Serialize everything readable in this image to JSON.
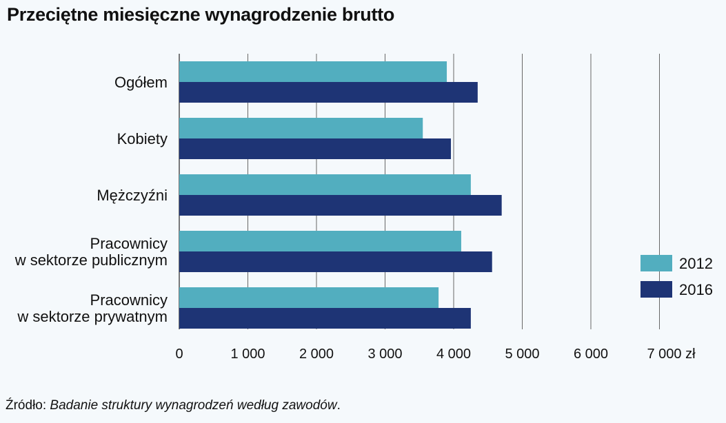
{
  "chart_data": {
    "type": "bar",
    "orientation": "horizontal",
    "title": "Przeciętne miesięczne wynagrodzenie brutto",
    "categories": [
      [
        "Ogółem"
      ],
      [
        "Kobiety"
      ],
      [
        "Mężczyźni"
      ],
      [
        "Pracownicy",
        "w sektorze publicznym"
      ],
      [
        "Pracownicy",
        "w sektorze prywatnym"
      ]
    ],
    "series": [
      {
        "name": "2012",
        "color": "#52aebf",
        "values": [
          3900,
          3550,
          4250,
          4110,
          3780
        ]
      },
      {
        "name": "2016",
        "color": "#1e3475",
        "values": [
          4350,
          3960,
          4700,
          4560,
          4250
        ]
      }
    ],
    "xlim": [
      0,
      7000
    ],
    "xticks": [
      0,
      1000,
      2000,
      3000,
      4000,
      5000,
      6000,
      7000
    ],
    "xtick_labels": [
      "0",
      "1 000",
      "2 000",
      "3 000",
      "4 000",
      "5 000",
      "6 000",
      "7 000 zł"
    ],
    "grid": "vertical",
    "legend_position": "right"
  },
  "source": {
    "label": "Źródło: ",
    "title": "Badanie struktury wynagrodzeń według zawodów",
    "suffix": "."
  }
}
